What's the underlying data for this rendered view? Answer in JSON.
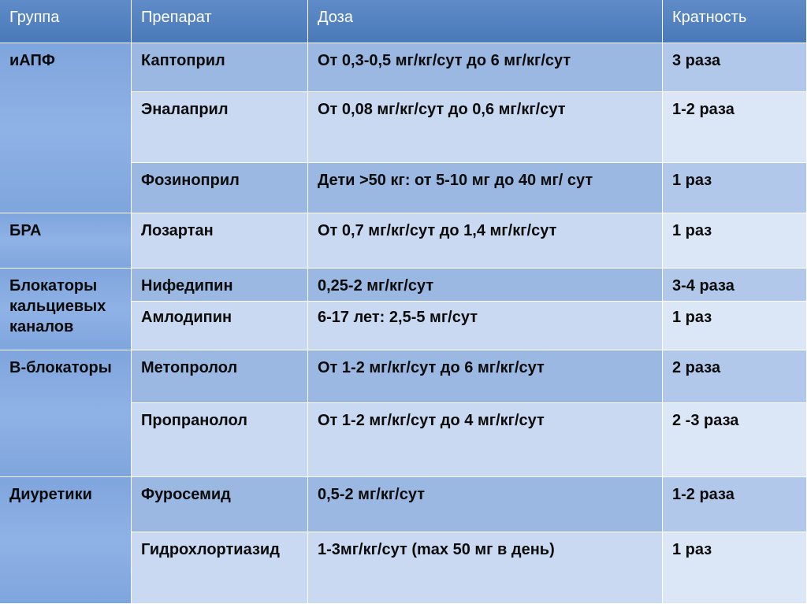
{
  "header": {
    "group": "Группа",
    "drug": "Препарат",
    "dose": "Доза",
    "frequency": "Кратность"
  },
  "groups": [
    {
      "label": "иАПФ"
    },
    {
      "label": "БРА"
    },
    {
      "label": "Блокаторы кальциевых каналов"
    },
    {
      "label": "В-блокаторы"
    },
    {
      "label": "Диуретики"
    }
  ],
  "rows": [
    {
      "drug": "Каптоприл",
      "dose": "От 0,3-0,5 мг/кг/сут до 6 мг/кг/сут",
      "frequency": "3 раза"
    },
    {
      "drug": "Эналаприл",
      "dose": "От 0,08 мг/кг/сут до 0,6 мг/кг/сут",
      "frequency": "1-2 раза"
    },
    {
      "drug": "Фозиноприл",
      "dose": "Дети >50 кг: от 5-10 мг до 40 мг/ сут",
      "frequency": "1 раз"
    },
    {
      "drug": "Лозартан",
      "dose": "От 0,7 мг/кг/сут до 1,4 мг/кг/сут",
      "frequency": "1 раз"
    },
    {
      "drug": "Нифедипин",
      "dose": "0,25-2 мг/кг/сут",
      "frequency": "3-4 раза"
    },
    {
      "drug": "Амлодипин",
      "dose": "6-17 лет: 2,5-5 мг/сут",
      "frequency": "1 раз"
    },
    {
      "drug": "Метопролол",
      "dose": "От 1-2 мг/кг/сут до 6 мг/кг/сут",
      "frequency": "2 раза"
    },
    {
      "drug": "Пропранолол",
      "dose": "От 1-2 мг/кг/сут до 4 мг/кг/сут",
      "frequency": "2 -3 раза"
    },
    {
      "drug": "Фуросемид",
      "dose": "0,5-2 мг/кг/сут",
      "frequency": "1-2 раза"
    },
    {
      "drug": "Гидрохлортиазид",
      "dose": "1-3мг/кг/сут (max 50 мг в день)",
      "frequency": "1 раз"
    }
  ]
}
